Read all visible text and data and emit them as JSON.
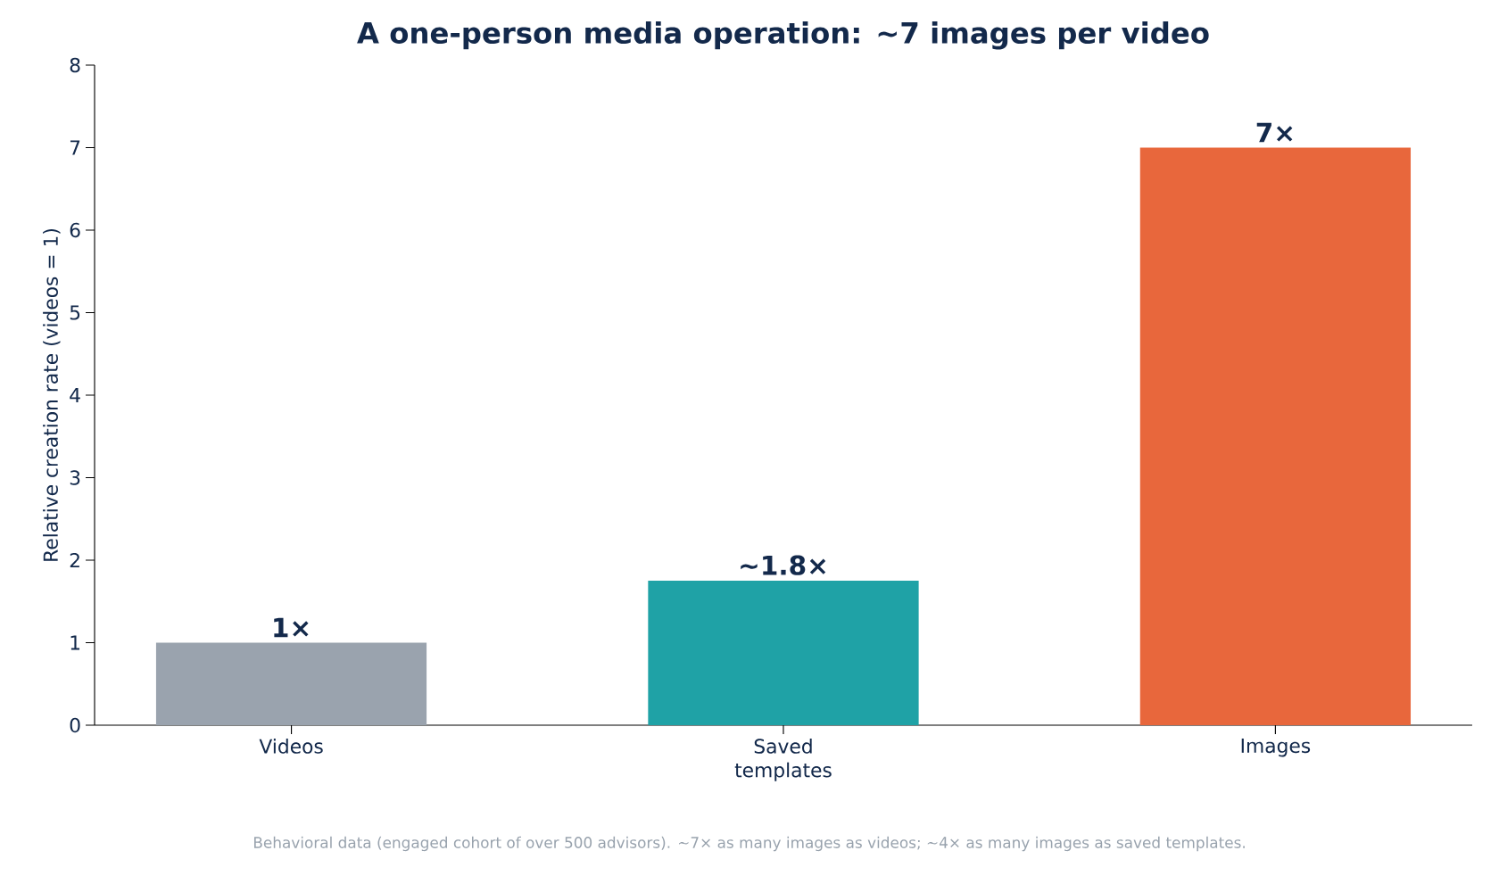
{
  "chart_data": {
    "type": "bar",
    "title": "A one-person media operation: ~7 images per video",
    "ylabel": "Relative creation rate (videos = 1)",
    "categories": [
      "Videos",
      "Saved templates",
      "Images"
    ],
    "values": [
      1,
      1.75,
      7
    ],
    "colors": [
      "#9aa3ae",
      "#1fa2a6",
      "#e8673c"
    ],
    "value_labels": [
      "1×",
      "~1.8×",
      "7×"
    ],
    "ylim": [
      0,
      8
    ],
    "yticks": [
      0,
      1,
      2,
      3,
      4,
      5,
      6,
      7,
      8
    ],
    "grid": false,
    "annotations": [
      "Behavioral data (engaged cohort of over 500 advisors). ~7× as many images as videos; ~4× as many images as saved templates."
    ]
  }
}
